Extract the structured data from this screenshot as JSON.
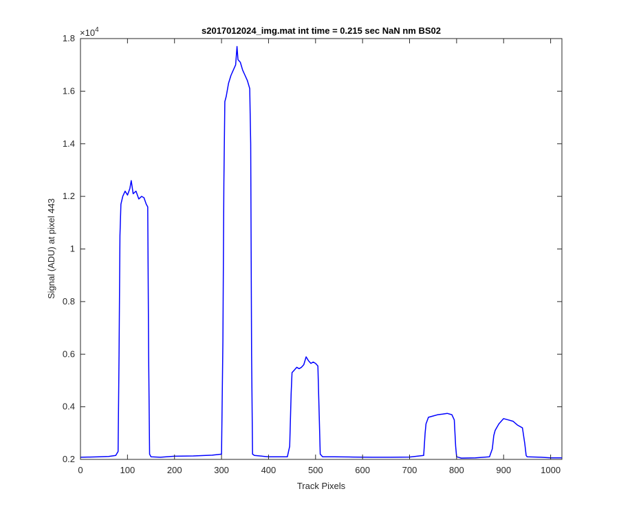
{
  "chart_data": {
    "type": "line",
    "title": "s2017012024_img.mat int time = 0.215 sec  NaN nm BS02",
    "xlabel": "Track Pixels",
    "ylabel": "Signal (ADU) at pixel 443",
    "xlim": [
      0,
      1024
    ],
    "ylim": [
      2000,
      18000
    ],
    "y_exponent_label": "×10",
    "y_exponent_power": "4",
    "x_ticks": [
      0,
      100,
      200,
      300,
      400,
      500,
      600,
      700,
      800,
      900,
      1000
    ],
    "x_tick_labels": [
      "0",
      "100",
      "200",
      "300",
      "400",
      "500",
      "600",
      "700",
      "800",
      "900",
      "1000"
    ],
    "y_ticks": [
      2000,
      4000,
      6000,
      8000,
      10000,
      12000,
      14000,
      16000,
      18000
    ],
    "y_tick_labels": [
      "0.2",
      "0.4",
      "0.6",
      "0.8",
      "1",
      "1.2",
      "1.4",
      "1.6",
      "1.8"
    ],
    "grid": false,
    "series": [
      {
        "name": "",
        "color": "#0000ff",
        "x": [
          0,
          20,
          40,
          60,
          75,
          80,
          82,
          84,
          86,
          90,
          95,
          100,
          105,
          108,
          112,
          118,
          124,
          130,
          135,
          140,
          143,
          145,
          147,
          150,
          170,
          200,
          240,
          280,
          300,
          303,
          305,
          307,
          310,
          315,
          320,
          325,
          330,
          333,
          335,
          340,
          345,
          350,
          355,
          360,
          362,
          364,
          366,
          370,
          400,
          440,
          445,
          448,
          450,
          455,
          460,
          465,
          470,
          475,
          480,
          485,
          490,
          495,
          500,
          505,
          508,
          510,
          515,
          540,
          580,
          620,
          660,
          700,
          730,
          733,
          735,
          738,
          740,
          750,
          760,
          770,
          780,
          790,
          795,
          798,
          800,
          810,
          840,
          870,
          876,
          879,
          882,
          885,
          890,
          900,
          910,
          920,
          930,
          940,
          945,
          948,
          950,
          980,
          1000,
          1024
        ],
        "y": [
          2080,
          2090,
          2100,
          2110,
          2150,
          2300,
          6000,
          10500,
          11700,
          12000,
          12200,
          12050,
          12300,
          12600,
          12100,
          12200,
          11900,
          12000,
          11950,
          11700,
          11600,
          6000,
          2200,
          2100,
          2080,
          2120,
          2130,
          2160,
          2200,
          6500,
          12500,
          15600,
          15800,
          16300,
          16600,
          16800,
          17000,
          17700,
          17200,
          17100,
          16800,
          16600,
          16400,
          16100,
          14000,
          6000,
          2200,
          2150,
          2100,
          2100,
          2500,
          4500,
          5300,
          5400,
          5500,
          5450,
          5500,
          5600,
          5900,
          5750,
          5650,
          5700,
          5650,
          5550,
          3500,
          2200,
          2100,
          2100,
          2090,
          2080,
          2080,
          2090,
          2150,
          3000,
          3350,
          3500,
          3600,
          3650,
          3700,
          3720,
          3750,
          3700,
          3500,
          2500,
          2100,
          2050,
          2060,
          2100,
          2400,
          2900,
          3100,
          3200,
          3350,
          3550,
          3500,
          3450,
          3300,
          3200,
          2600,
          2150,
          2100,
          2080,
          2060,
          2060
        ]
      }
    ]
  }
}
